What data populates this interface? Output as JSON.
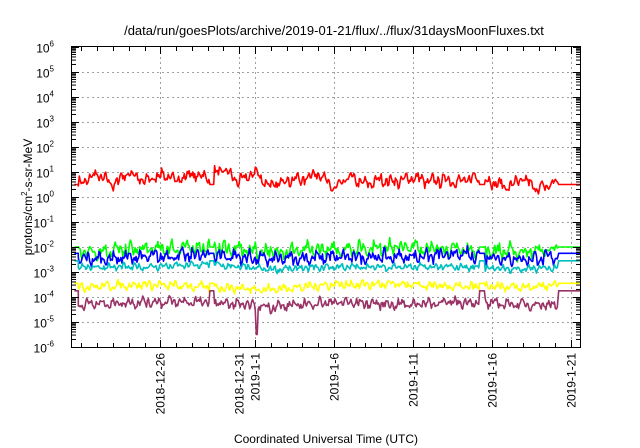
{
  "chart_data": {
    "type": "line",
    "title": "/data/run/goesPlots/archive/2019-01-21/flux/../flux/31daysMoonFluxes.txt",
    "xlabel": "Coordinated Universal Time (UTC)",
    "ylabel_parts": [
      "protons/cm",
      "2",
      "-s-sr-MeV"
    ],
    "yscale": "log",
    "ylim_exp": [
      -6,
      6
    ],
    "ytick_base": "10",
    "yticks_exp": [
      "-6",
      "-5",
      "-4",
      "-3",
      "-2",
      "-1",
      "0",
      "1",
      "2",
      "3",
      "4",
      "5",
      "6"
    ],
    "xlim_day": [
      -10.6,
      21.6
    ],
    "xticks": [
      {
        "day": -5,
        "label": "2018-12-26"
      },
      {
        "day": 0,
        "label": "2018-12-31"
      },
      {
        "day": 1,
        "label": "2019-1-1"
      },
      {
        "day": 6,
        "label": "2019-1-6"
      },
      {
        "day": 11,
        "label": "2019-1-11"
      },
      {
        "day": 16,
        "label": "2019-1-16"
      },
      {
        "day": 21,
        "label": "2019-1-21"
      }
    ],
    "grid": true,
    "data_gaps": [
      [
        -1.9,
        -1.6
      ],
      [
        15.2,
        15.6
      ]
    ],
    "data_range": [
      -10.2,
      20.2
    ],
    "series": [
      {
        "color": "#ff0000",
        "x_day": [
          -10.2,
          -9,
          -8,
          -7,
          -6,
          -5,
          -4,
          -3,
          -2,
          -1,
          0,
          1,
          2,
          3,
          4,
          5,
          6,
          7,
          8,
          9,
          10,
          11,
          12,
          13,
          14,
          15,
          16,
          17,
          18,
          19,
          20,
          20.2
        ],
        "log10_y": [
          0.5,
          0.9,
          0.5,
          1.0,
          0.6,
          0.9,
          0.7,
          0.9,
          0.8,
          1.1,
          0.6,
          1.0,
          0.4,
          0.7,
          0.7,
          1.0,
          0.3,
          0.8,
          0.5,
          0.7,
          0.6,
          0.8,
          0.6,
          0.7,
          0.6,
          0.8,
          0.6,
          0.4,
          0.7,
          0.3,
          0.6,
          0.5
        ],
        "noise": 0.35,
        "plateau_log10_y": 0.5
      },
      {
        "color": "#00ff00",
        "x_day": [
          -10.2,
          -6,
          -2,
          2,
          6,
          10,
          14,
          18,
          20.2
        ],
        "log10_y": [
          -2.2,
          -2.1,
          -2.0,
          -2.2,
          -2.1,
          -2.0,
          -2.1,
          -2.2,
          -2.1
        ],
        "noise": 0.45,
        "plateau_log10_y": -2.0
      },
      {
        "color": "#0000ff",
        "x_day": [
          -10.2,
          -6,
          -2,
          2,
          6,
          10,
          14,
          18,
          20.2
        ],
        "log10_y": [
          -2.5,
          -2.4,
          -2.3,
          -2.5,
          -2.4,
          -2.4,
          -2.3,
          -2.5,
          -2.4
        ],
        "noise": 0.4,
        "plateau_log10_y": -2.25
      },
      {
        "color": "#00bfbf",
        "x_day": [
          -10.2,
          -6,
          -2,
          2,
          6,
          10,
          14,
          18,
          20.2
        ],
        "log10_y": [
          -2.8,
          -2.8,
          -2.7,
          -2.9,
          -2.8,
          -2.8,
          -2.8,
          -2.9,
          -2.8
        ],
        "noise": 0.2,
        "plateau_log10_y": -2.55
      },
      {
        "color": "#ffff00",
        "x_day": [
          -10.2,
          -6,
          -2,
          2,
          6,
          10,
          14,
          18,
          20.2
        ],
        "log10_y": [
          -3.6,
          -3.5,
          -3.6,
          -3.7,
          -3.5,
          -3.5,
          -3.6,
          -3.6,
          -3.5
        ],
        "noise": 0.25,
        "plateau_log10_y": -3.45
      },
      {
        "color": "#993366",
        "x_day": [
          -10.2,
          -6,
          -2,
          2,
          6,
          10,
          14,
          18,
          20.2
        ],
        "log10_y": [
          -4.3,
          -4.2,
          -4.2,
          -4.4,
          -4.2,
          -4.3,
          -4.2,
          -4.3,
          -4.3
        ],
        "noise": 0.3,
        "plateau_log10_y": -3.75,
        "dip": {
          "day": 1.1,
          "log10_y": -5.5
        }
      }
    ]
  }
}
